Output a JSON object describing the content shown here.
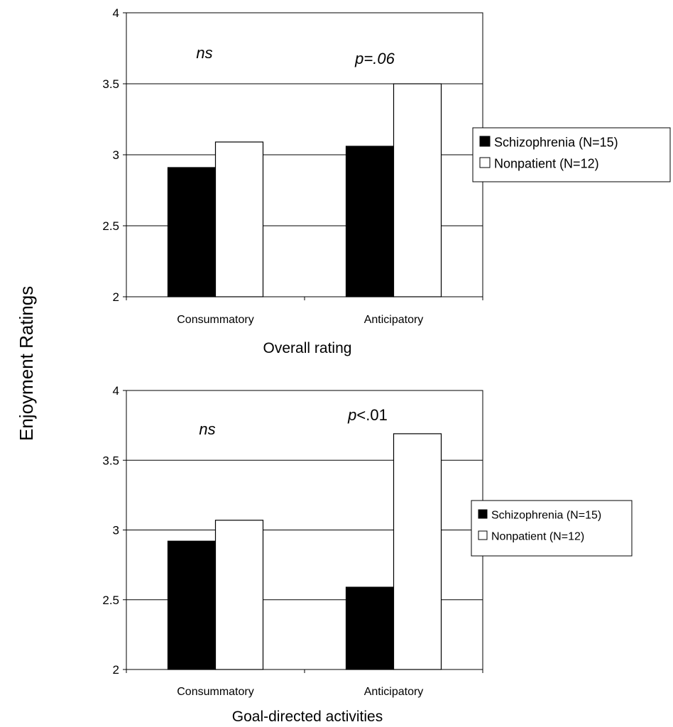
{
  "shared_ylabel": "Enjoyment Ratings",
  "chart_data": [
    {
      "type": "bar",
      "title": "",
      "xlabel": "Overall rating",
      "ylabel": "Enjoyment Ratings",
      "ylim": [
        2,
        4
      ],
      "yticks": [
        2,
        2.5,
        3,
        3.5,
        4
      ],
      "ytick_labels": [
        "2",
        "2.5",
        "3",
        "3.5",
        "4"
      ],
      "grid": true,
      "categories": [
        "Consummatory",
        "Anticipatory"
      ],
      "series": [
        {
          "name": "Schizophrenia (N=15)",
          "values": [
            2.91,
            3.06
          ],
          "color": "#000000"
        },
        {
          "name": "Nonpatient (N=12)",
          "values": [
            3.09,
            3.5
          ],
          "color": "#ffffff"
        }
      ],
      "annotations": [
        "ns",
        "p=.06"
      ],
      "legend_position": "right"
    },
    {
      "type": "bar",
      "title": "",
      "xlabel": "Goal-directed activities",
      "ylabel": "Enjoyment Ratings",
      "ylim": [
        2,
        4
      ],
      "yticks": [
        2,
        2.5,
        3,
        3.5,
        4
      ],
      "ytick_labels": [
        "2",
        "2.5",
        "3",
        "3.5",
        "4"
      ],
      "grid": true,
      "categories": [
        "Consummatory",
        "Anticipatory"
      ],
      "series": [
        {
          "name": "Schizophrenia (N=15)",
          "values": [
            2.92,
            2.59
          ],
          "color": "#000000"
        },
        {
          "name": "Nonpatient (N=12)",
          "values": [
            3.07,
            3.69
          ],
          "color": "#ffffff"
        }
      ],
      "annotations": [
        "ns",
        "p<.01"
      ],
      "legend_position": "right"
    }
  ]
}
